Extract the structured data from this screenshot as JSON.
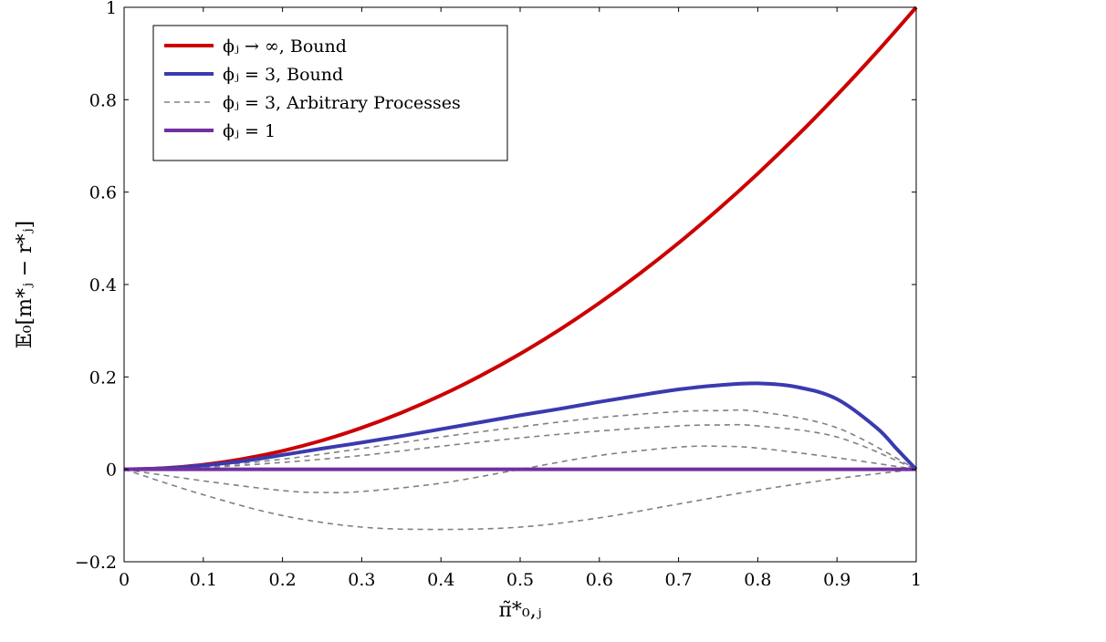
{
  "chart_data": {
    "type": "line",
    "xlabel": "π̃*₀,ⱼ",
    "ylabel": "𝔼₀[m*ⱼ − r*ⱼ]",
    "xlim": [
      0,
      1
    ],
    "ylim": [
      -0.2,
      1
    ],
    "x_ticks": [
      {
        "value": 0,
        "label": "0"
      },
      {
        "value": 0.1,
        "label": "0.1"
      },
      {
        "value": 0.2,
        "label": "0.2"
      },
      {
        "value": 0.3,
        "label": "0.3"
      },
      {
        "value": 0.4,
        "label": "0.4"
      },
      {
        "value": 0.5,
        "label": "0.5"
      },
      {
        "value": 0.6,
        "label": "0.6"
      },
      {
        "value": 0.7,
        "label": "0.7"
      },
      {
        "value": 0.8,
        "label": "0.8"
      },
      {
        "value": 0.9,
        "label": "0.9"
      },
      {
        "value": 1,
        "label": "1"
      }
    ],
    "y_ticks": [
      {
        "value": -0.2,
        "label": "−0.2"
      },
      {
        "value": 0,
        "label": "0"
      },
      {
        "value": 0.2,
        "label": "0.2"
      },
      {
        "value": 0.4,
        "label": "0.4"
      },
      {
        "value": 0.6,
        "label": "0.6"
      },
      {
        "value": 0.8,
        "label": "0.8"
      },
      {
        "value": 1,
        "label": "1"
      }
    ],
    "grid": false,
    "legend_position": "top-left",
    "series": [
      {
        "name": "ϕⱼ → ∞, Bound",
        "color": "#cc0000",
        "style": "solid",
        "x": [
          0,
          0.05,
          0.1,
          0.15,
          0.2,
          0.25,
          0.3,
          0.35,
          0.4,
          0.45,
          0.5,
          0.55,
          0.6,
          0.65,
          0.7,
          0.75,
          0.8,
          0.85,
          0.9,
          0.95,
          1
        ],
        "y": [
          0,
          0.0025,
          0.01,
          0.0225,
          0.04,
          0.0625,
          0.09,
          0.1225,
          0.16,
          0.2025,
          0.25,
          0.3025,
          0.36,
          0.4225,
          0.49,
          0.5625,
          0.64,
          0.7225,
          0.81,
          0.9025,
          1
        ]
      },
      {
        "name": "ϕⱼ = 3, Bound",
        "color": "#3a3ab0",
        "style": "solid",
        "x": [
          0,
          0.05,
          0.1,
          0.15,
          0.2,
          0.25,
          0.3,
          0.35,
          0.4,
          0.45,
          0.5,
          0.55,
          0.6,
          0.65,
          0.7,
          0.75,
          0.8,
          0.85,
          0.9,
          0.95,
          0.975,
          1
        ],
        "y": [
          0,
          0.002,
          0.0085,
          0.018,
          0.031,
          0.045,
          0.058,
          0.072,
          0.087,
          0.102,
          0.117,
          0.131,
          0.146,
          0.16,
          0.173,
          0.182,
          0.186,
          0.178,
          0.152,
          0.09,
          0.045,
          0
        ]
      },
      {
        "name": "ϕⱼ = 3, Arbitrary Processes",
        "color": "#808080",
        "style": "dashed",
        "x": [
          0,
          0.1,
          0.2,
          0.3,
          0.4,
          0.5,
          0.6,
          0.7,
          0.75,
          0.8,
          0.9,
          1
        ],
        "y": [
          0,
          0.006,
          0.022,
          0.045,
          0.07,
          0.092,
          0.112,
          0.125,
          0.127,
          0.125,
          0.09,
          0
        ]
      },
      {
        "color": "#808080",
        "style": "dashed",
        "x": [
          0,
          0.1,
          0.2,
          0.3,
          0.4,
          0.5,
          0.6,
          0.7,
          0.75,
          0.8,
          0.9,
          1
        ],
        "y": [
          0,
          0.004,
          0.015,
          0.03,
          0.05,
          0.068,
          0.083,
          0.094,
          0.096,
          0.094,
          0.07,
          0
        ]
      },
      {
        "color": "#808080",
        "style": "dashed",
        "x": [
          0,
          0.1,
          0.2,
          0.25,
          0.3,
          0.4,
          0.5,
          0.6,
          0.7,
          0.75,
          0.8,
          0.9,
          1
        ],
        "y": [
          0,
          -0.025,
          -0.046,
          -0.05,
          -0.048,
          -0.03,
          0,
          0.03,
          0.048,
          0.05,
          0.046,
          0.025,
          0
        ]
      },
      {
        "color": "#808080",
        "style": "dashed",
        "x": [
          0,
          0.1,
          0.2,
          0.3,
          0.4,
          0.5,
          0.6,
          0.7,
          0.8,
          0.9,
          1
        ],
        "y": [
          0,
          -0.055,
          -0.1,
          -0.125,
          -0.13,
          -0.125,
          -0.105,
          -0.075,
          -0.045,
          -0.02,
          0
        ]
      },
      {
        "name": "ϕⱼ = 1",
        "color": "#7030a0",
        "style": "solid",
        "x": [
          0,
          1
        ],
        "y": [
          0,
          0
        ]
      }
    ]
  },
  "legend": {
    "entries": [
      {
        "label": "ϕⱼ → ∞, Bound",
        "color": "#cc0000",
        "style": "solid"
      },
      {
        "label": "ϕⱼ = 3, Bound",
        "color": "#3a3ab0",
        "style": "solid"
      },
      {
        "label": "ϕⱼ = 3, Arbitrary Processes",
        "color": "#808080",
        "style": "dashed"
      },
      {
        "label": "ϕⱼ = 1",
        "color": "#7030a0",
        "style": "solid"
      }
    ]
  }
}
